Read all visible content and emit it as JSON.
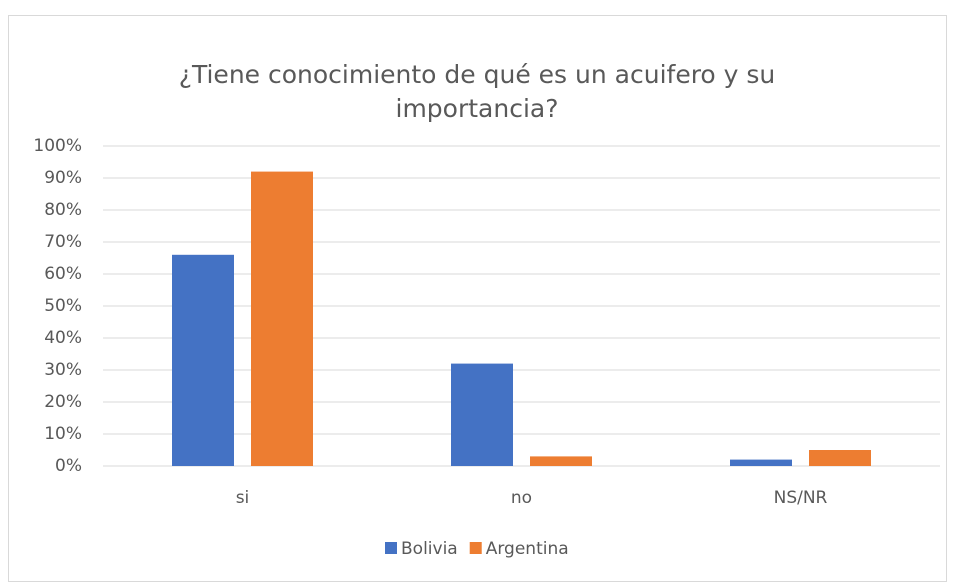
{
  "chart_data": {
    "type": "bar",
    "title": "¿Tiene conocimiento de qué es un acuifero y su importancia?",
    "categories": [
      "si",
      "no",
      "NS/NR"
    ],
    "series": [
      {
        "name": "Bolivia",
        "color": "#4472c4",
        "values": [
          66,
          32,
          2
        ]
      },
      {
        "name": "Argentina",
        "color": "#ed7d31",
        "values": [
          92,
          3,
          5
        ]
      }
    ],
    "ylim": [
      0,
      100
    ],
    "yticks": [
      {
        "value": 0,
        "label": "0%"
      },
      {
        "value": 10,
        "label": "10%"
      },
      {
        "value": 20,
        "label": "20%"
      },
      {
        "value": 30,
        "label": "30%"
      },
      {
        "value": 40,
        "label": "40%"
      },
      {
        "value": 50,
        "label": "50%"
      },
      {
        "value": 60,
        "label": "60%"
      },
      {
        "value": 70,
        "label": "70%"
      },
      {
        "value": 80,
        "label": "80%"
      },
      {
        "value": 90,
        "label": "90%"
      },
      {
        "value": 100,
        "label": "100%"
      }
    ],
    "grid": true,
    "legend": "bottom"
  }
}
